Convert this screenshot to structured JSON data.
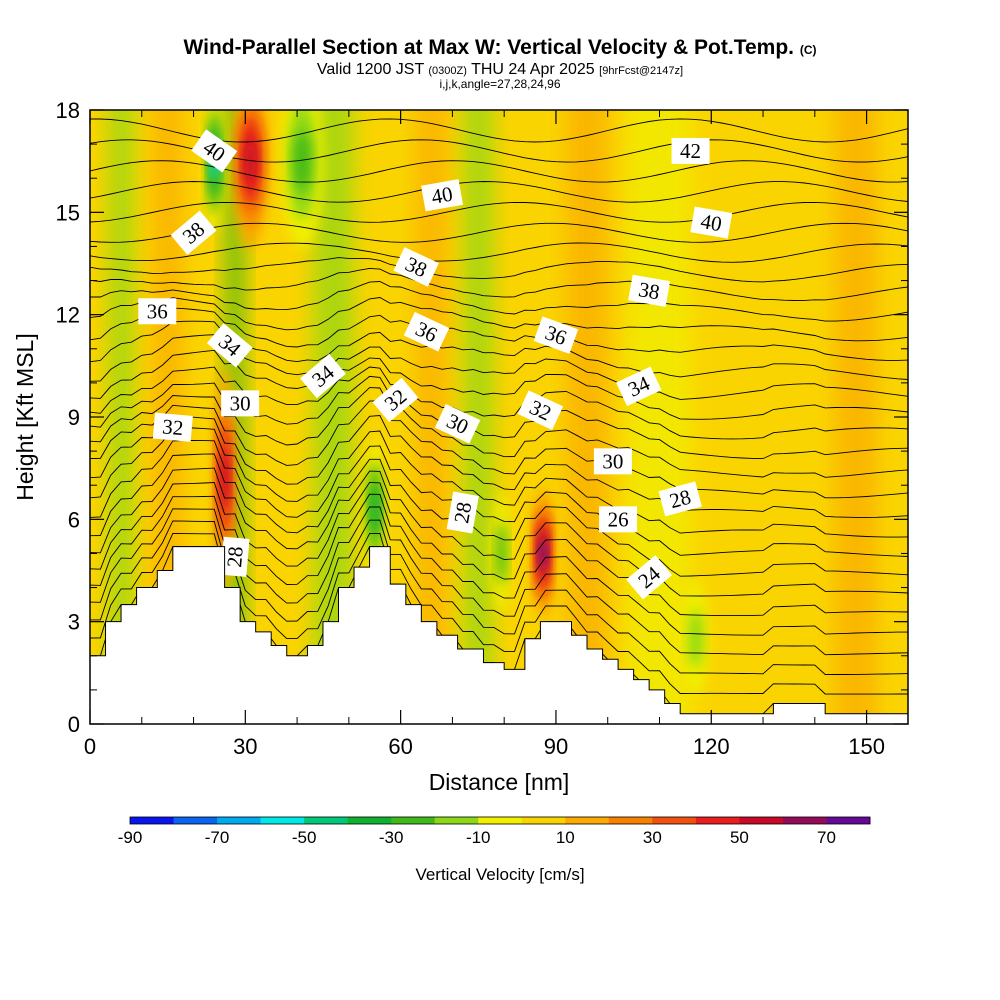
{
  "title": {
    "main": "Wind-Parallel Section at Max W: Vertical Velocity & Pot.Temp.",
    "copyright": "(C)",
    "valid_prefix": "Valid 1200 JST",
    "valid_zulu": "(0300Z)",
    "valid_date": "THU 24 Apr 2025",
    "forecast": "[9hrFcst@2147z]",
    "indices": "i,j,k,angle=27,28,24,96"
  },
  "chart_data": {
    "type": "heatmap",
    "xlabel": "Distance [nm]",
    "ylabel": "Height [Kft MSL]",
    "xlim": [
      0,
      158
    ],
    "ylim": [
      0,
      18
    ],
    "xticks": [
      0,
      30,
      60,
      90,
      120,
      150
    ],
    "yticks": [
      0,
      3,
      6,
      9,
      12,
      15,
      18
    ],
    "minor_xticks": [
      10,
      20,
      40,
      50,
      70,
      80,
      100,
      110,
      130,
      140
    ],
    "colorbar": {
      "label": "Vertical Velocity [cm/s]",
      "range": [
        -90,
        80
      ],
      "step": 10,
      "tick_values": [
        -90,
        -70,
        -50,
        -30,
        -10,
        10,
        30,
        50,
        70
      ],
      "tick_labels": [
        "-90",
        "-70",
        "-50",
        "-30",
        "-10",
        "10",
        "30",
        "50",
        "70"
      ],
      "colors": [
        "#0a14f0",
        "#0a64f0",
        "#00aaf0",
        "#00e8e8",
        "#00c878",
        "#10b030",
        "#40b818",
        "#8cd818",
        "#f0f000",
        "#fad400",
        "#faaa00",
        "#f88000",
        "#f05010",
        "#e81e1e",
        "#c80a28",
        "#960a5a",
        "#640a96"
      ]
    },
    "terrain": [
      [
        0,
        2
      ],
      [
        3,
        2
      ],
      [
        3,
        3
      ],
      [
        6,
        3
      ],
      [
        6,
        3.5
      ],
      [
        9,
        3.5
      ],
      [
        9,
        4
      ],
      [
        13,
        4
      ],
      [
        13,
        4.5
      ],
      [
        16,
        4.5
      ],
      [
        16,
        5.2
      ],
      [
        26,
        5.2
      ],
      [
        26,
        4
      ],
      [
        29,
        4
      ],
      [
        29,
        3
      ],
      [
        32,
        3
      ],
      [
        32,
        2.7
      ],
      [
        35,
        2.7
      ],
      [
        35,
        2.3
      ],
      [
        38,
        2.3
      ],
      [
        38,
        2
      ],
      [
        42,
        2
      ],
      [
        42,
        2.3
      ],
      [
        45,
        2.3
      ],
      [
        45,
        3
      ],
      [
        48,
        3
      ],
      [
        48,
        4
      ],
      [
        51,
        4
      ],
      [
        51,
        4.6
      ],
      [
        54,
        4.6
      ],
      [
        54,
        5.2
      ],
      [
        58,
        5.2
      ],
      [
        58,
        4.1
      ],
      [
        61,
        4.1
      ],
      [
        61,
        3.5
      ],
      [
        64,
        3.5
      ],
      [
        64,
        3
      ],
      [
        67,
        3
      ],
      [
        67,
        2.6
      ],
      [
        71,
        2.6
      ],
      [
        71,
        2.2
      ],
      [
        76,
        2.2
      ],
      [
        76,
        1.8
      ],
      [
        80,
        1.8
      ],
      [
        80,
        1.6
      ],
      [
        84,
        1.6
      ],
      [
        84,
        2.5
      ],
      [
        87,
        2.5
      ],
      [
        87,
        3
      ],
      [
        93,
        3
      ],
      [
        93,
        2.6
      ],
      [
        96,
        2.6
      ],
      [
        96,
        2.2
      ],
      [
        99,
        2.2
      ],
      [
        99,
        1.9
      ],
      [
        102,
        1.9
      ],
      [
        102,
        1.6
      ],
      [
        105,
        1.6
      ],
      [
        105,
        1.3
      ],
      [
        108,
        1.3
      ],
      [
        108,
        1
      ],
      [
        111,
        1
      ],
      [
        111,
        0.6
      ],
      [
        114,
        0.6
      ],
      [
        114,
        0.3
      ],
      [
        132,
        0.3
      ],
      [
        132,
        0.6
      ],
      [
        142,
        0.6
      ],
      [
        142,
        0.3
      ],
      [
        158,
        0.3
      ]
    ],
    "theta_labels": [
      {
        "text": "40",
        "x": 24,
        "y": 16.8,
        "angle": 35
      },
      {
        "text": "38",
        "x": 20,
        "y": 14.4,
        "angle": -40
      },
      {
        "text": "36",
        "x": 13,
        "y": 12.1,
        "angle": 0
      },
      {
        "text": "34",
        "x": 27,
        "y": 11.1,
        "angle": 40
      },
      {
        "text": "32",
        "x": 16,
        "y": 8.7,
        "angle": 5
      },
      {
        "text": "30",
        "x": 29,
        "y": 9.4,
        "angle": 0
      },
      {
        "text": "28",
        "x": 28,
        "y": 4.9,
        "angle": -85
      },
      {
        "text": "34",
        "x": 45,
        "y": 10.2,
        "angle": -40
      },
      {
        "text": "32",
        "x": 59,
        "y": 9.5,
        "angle": -40
      },
      {
        "text": "30",
        "x": 71,
        "y": 8.8,
        "angle": 25
      },
      {
        "text": "28",
        "x": 72,
        "y": 6.2,
        "angle": -80
      },
      {
        "text": "38",
        "x": 63,
        "y": 13.4,
        "angle": 25
      },
      {
        "text": "36",
        "x": 65,
        "y": 11.5,
        "angle": 25
      },
      {
        "text": "40",
        "x": 68,
        "y": 15.5,
        "angle": -10
      },
      {
        "text": "42",
        "x": 116,
        "y": 16.8,
        "angle": 0
      },
      {
        "text": "40",
        "x": 120,
        "y": 14.7,
        "angle": 10
      },
      {
        "text": "38",
        "x": 108,
        "y": 12.7,
        "angle": 10
      },
      {
        "text": "36",
        "x": 90,
        "y": 11.4,
        "angle": 20
      },
      {
        "text": "34",
        "x": 106,
        "y": 9.9,
        "angle": -25
      },
      {
        "text": "32",
        "x": 87,
        "y": 9.2,
        "angle": 25
      },
      {
        "text": "30",
        "x": 101,
        "y": 7.7,
        "angle": 0
      },
      {
        "text": "28",
        "x": 114,
        "y": 6.6,
        "angle": -15
      },
      {
        "text": "26",
        "x": 102,
        "y": 6.0,
        "angle": 0
      },
      {
        "text": "24",
        "x": 108,
        "y": 4.3,
        "angle": -40
      }
    ],
    "w_features": [
      {
        "x": 26,
        "y": 7.2,
        "rx": 1.6,
        "ry": 3.2,
        "value": 55
      },
      {
        "x": 31,
        "y": 16.5,
        "rx": 3,
        "ry": 2.5,
        "value": 55
      },
      {
        "x": 87.5,
        "y": 5.0,
        "rx": 1.5,
        "ry": 1.9,
        "value": 70
      },
      {
        "x": 24,
        "y": 16.5,
        "rx": 1.2,
        "ry": 2.0,
        "value": -55
      },
      {
        "x": 41,
        "y": 16.5,
        "rx": 3.5,
        "ry": 2.5,
        "value": -30
      },
      {
        "x": 55,
        "y": 6.3,
        "rx": 1.5,
        "ry": 2.0,
        "value": -35
      },
      {
        "x": 79.5,
        "y": 5.0,
        "rx": 1.2,
        "ry": 1.7,
        "value": -25
      },
      {
        "x": 117,
        "y": 2.5,
        "rx": 2,
        "ry": 1.6,
        "value": -18
      }
    ]
  }
}
